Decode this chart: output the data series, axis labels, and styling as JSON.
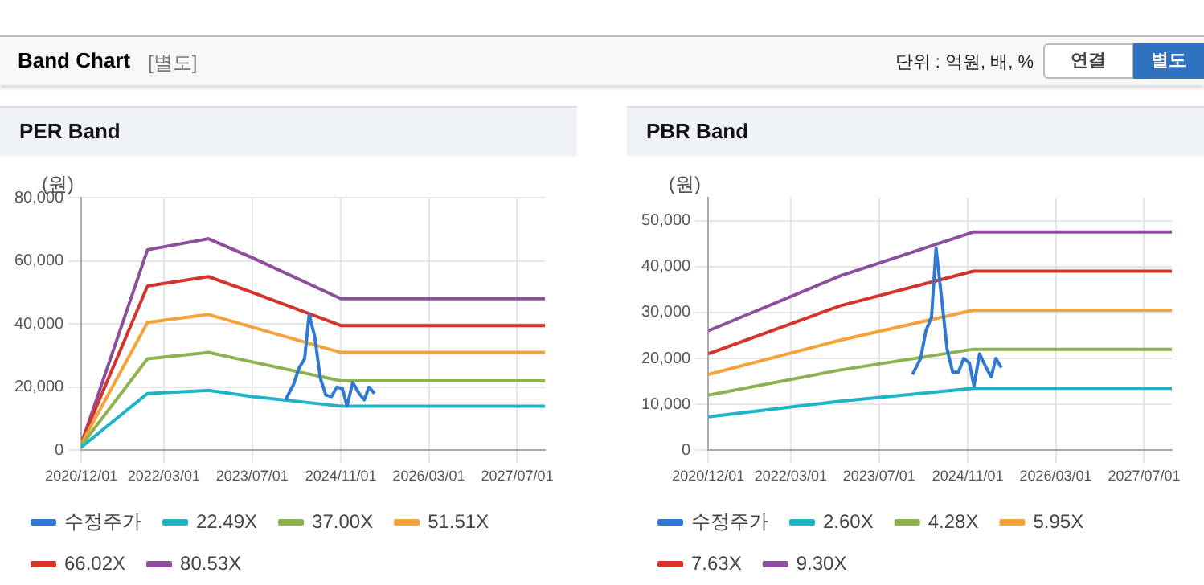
{
  "chart_data": [
    {
      "type": "line",
      "title": "PER Band",
      "annotations": [
        "Band Chart",
        "[별도]",
        "단위 : 억원, 배, %",
        "연결",
        "별도"
      ],
      "ylabel": "(원)",
      "xlim": [
        "2020-12-01",
        "2027-12-01"
      ],
      "xticks": [
        {
          "value": "2020-12-01",
          "label": "2020/12/01"
        },
        {
          "value": "2022-03-01",
          "label": "2022/03/01"
        },
        {
          "value": "2023-07-01",
          "label": "2023/07/01"
        },
        {
          "value": "2024-11-01",
          "label": "2024/11/01"
        },
        {
          "value": "2026-03-01",
          "label": "2026/03/01"
        },
        {
          "value": "2027-07-01",
          "label": "2027/07/01"
        }
      ],
      "ylim": [
        0,
        80000
      ],
      "yticks": [
        {
          "value": 0,
          "label": "0"
        },
        {
          "value": 20000,
          "label": "20,000"
        },
        {
          "value": 40000,
          "label": "40,000"
        },
        {
          "value": 60000,
          "label": "60,000"
        },
        {
          "value": 80000,
          "label": "80,000"
        }
      ],
      "grid": true,
      "legend": "bottom",
      "marker": "none",
      "line_style": "solid",
      "series": [
        {
          "name": "수정주가",
          "color": "#2f7ad0",
          "x": [
            "2024-01-01",
            "2024-02-15",
            "2024-03-15",
            "2024-04-15",
            "2024-05-10",
            "2024-06-10",
            "2024-07-10",
            "2024-08-10",
            "2024-09-10",
            "2024-10-10",
            "2024-11-10",
            "2024-12-05",
            "2025-01-05",
            "2025-02-10",
            "2025-03-10",
            "2025-04-05",
            "2025-05-05"
          ],
          "values": [
            16000,
            21000,
            26000,
            29000,
            43000,
            36000,
            23000,
            17500,
            17000,
            20000,
            19500,
            14000,
            21500,
            18000,
            16000,
            20000,
            18000
          ]
        },
        {
          "name": "22.49X",
          "color": "#1fb3c8",
          "x": [
            "2020-12-01",
            "2021-12-01",
            "2022-11-01",
            "2023-07-01",
            "2024-11-01",
            "2027-12-01"
          ],
          "values": [
            1000,
            18000,
            19000,
            17000,
            14000,
            14000
          ]
        },
        {
          "name": "37.00X",
          "color": "#8cb34f",
          "x": [
            "2020-12-01",
            "2021-12-01",
            "2022-11-01",
            "2023-07-01",
            "2024-11-01",
            "2027-12-01"
          ],
          "values": [
            1500,
            29000,
            31000,
            28000,
            22000,
            22000
          ]
        },
        {
          "name": "51.51X",
          "color": "#f4a23a",
          "x": [
            "2020-12-01",
            "2021-12-01",
            "2022-11-01",
            "2023-07-01",
            "2024-11-01",
            "2027-12-01"
          ],
          "values": [
            2000,
            40500,
            43000,
            39000,
            31000,
            31000
          ]
        },
        {
          "name": "66.02X",
          "color": "#d3342b",
          "x": [
            "2020-12-01",
            "2021-12-01",
            "2022-11-01",
            "2023-07-01",
            "2024-11-01",
            "2027-12-01"
          ],
          "values": [
            2500,
            52000,
            55000,
            50000,
            39500,
            39500
          ]
        },
        {
          "name": "80.53X",
          "color": "#8d4f9c",
          "x": [
            "2020-12-01",
            "2021-12-01",
            "2022-11-01",
            "2023-07-01",
            "2024-11-01",
            "2027-12-01"
          ],
          "values": [
            2000,
            63500,
            67000,
            61000,
            48000,
            48000
          ]
        }
      ]
    },
    {
      "type": "line",
      "title": "PBR Band",
      "ylabel": "(원)",
      "xlim": [
        "2020-12-01",
        "2027-12-01"
      ],
      "xticks": [
        {
          "value": "2020-12-01",
          "label": "2020/12/01"
        },
        {
          "value": "2022-03-01",
          "label": "2022/03/01"
        },
        {
          "value": "2023-07-01",
          "label": "2023/07/01"
        },
        {
          "value": "2024-11-01",
          "label": "2024/11/01"
        },
        {
          "value": "2026-03-01",
          "label": "2026/03/01"
        },
        {
          "value": "2027-07-01",
          "label": "2027/07/01"
        }
      ],
      "ylim": [
        0,
        55000
      ],
      "yticks": [
        {
          "value": 0,
          "label": "0"
        },
        {
          "value": 10000,
          "label": "10,000"
        },
        {
          "value": 20000,
          "label": "20,000"
        },
        {
          "value": 30000,
          "label": "30,000"
        },
        {
          "value": 40000,
          "label": "40,000"
        },
        {
          "value": 50000,
          "label": "50,000"
        }
      ],
      "grid": true,
      "legend": "bottom",
      "marker": "none",
      "line_style": "solid",
      "series": [
        {
          "name": "수정주가",
          "color": "#2f7ad0",
          "x": [
            "2024-01-01",
            "2024-02-15",
            "2024-03-15",
            "2024-04-15",
            "2024-05-10",
            "2024-06-10",
            "2024-07-10",
            "2024-08-10",
            "2024-09-10",
            "2024-10-10",
            "2024-11-10",
            "2024-12-05",
            "2025-01-05",
            "2025-02-10",
            "2025-03-10",
            "2025-04-05",
            "2025-05-05"
          ],
          "values": [
            16500,
            20000,
            26000,
            29000,
            44000,
            33000,
            22000,
            17000,
            17000,
            20000,
            19000,
            14000,
            21000,
            18000,
            16000,
            20000,
            18000
          ]
        },
        {
          "name": "2.60X",
          "color": "#1fb3c8",
          "x": [
            "2020-12-01",
            "2022-12-01",
            "2024-12-01",
            "2027-12-01"
          ],
          "values": [
            7300,
            10700,
            13500,
            13500
          ]
        },
        {
          "name": "4.28X",
          "color": "#8cb34f",
          "x": [
            "2020-12-01",
            "2022-12-01",
            "2024-12-01",
            "2027-12-01"
          ],
          "values": [
            12000,
            17500,
            22000,
            22000
          ]
        },
        {
          "name": "5.95X",
          "color": "#f4a23a",
          "x": [
            "2020-12-01",
            "2022-12-01",
            "2024-12-01",
            "2027-12-01"
          ],
          "values": [
            16500,
            24000,
            30500,
            30500
          ]
        },
        {
          "name": "7.63X",
          "color": "#d3342b",
          "x": [
            "2020-12-01",
            "2022-12-01",
            "2024-12-01",
            "2027-12-01"
          ],
          "values": [
            21000,
            31500,
            39000,
            39000
          ]
        },
        {
          "name": "9.30X",
          "color": "#8d4f9c",
          "x": [
            "2020-12-01",
            "2022-12-01",
            "2024-12-01",
            "2027-12-01"
          ],
          "values": [
            26000,
            38000,
            47500,
            47500
          ]
        }
      ]
    }
  ]
}
